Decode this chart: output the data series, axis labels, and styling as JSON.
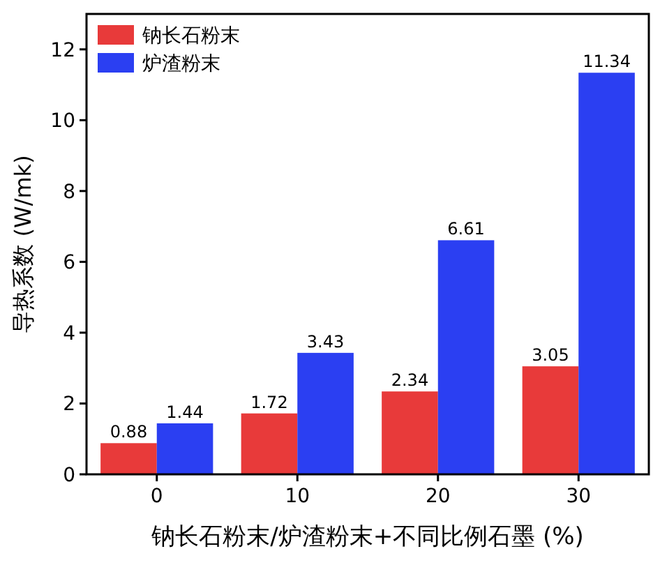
{
  "chart_data": {
    "type": "bar",
    "xlabel": "钠长石粉末/炉渣粉末+不同比例石墨 (%)",
    "ylabel": "导热系数 (W/mk)",
    "categories": [
      "0",
      "10",
      "20",
      "30"
    ],
    "series": [
      {
        "name": "钠长石粉末",
        "color": "#e83a3a",
        "values": [
          0.88,
          1.72,
          2.34,
          3.05
        ]
      },
      {
        "name": "炉渣粉末",
        "color": "#2b3ff2",
        "values": [
          1.44,
          3.43,
          6.61,
          11.34
        ]
      }
    ],
    "ylim": [
      0,
      13
    ],
    "yticks": [
      0,
      2,
      4,
      6,
      8,
      10,
      12
    ],
    "data_labels": true,
    "legend": "top left",
    "grid": false
  }
}
